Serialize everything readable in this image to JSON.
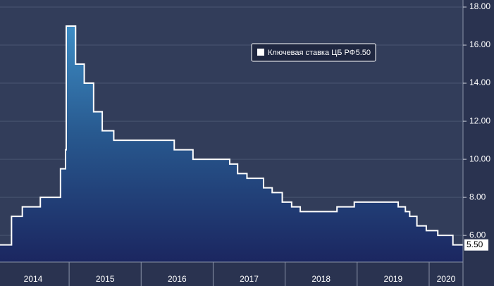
{
  "chart_data": {
    "type": "step-area",
    "series": [
      {
        "name": "Ключевая ставка ЦБ РФ",
        "color": "#ffffff",
        "x": [
          2014.04,
          2014.2,
          2014.35,
          2014.6,
          2014.88,
          2014.95,
          2014.96,
          2015.09,
          2015.21,
          2015.34,
          2015.46,
          2015.62,
          2016.46,
          2016.72,
          2017.23,
          2017.34,
          2017.47,
          2017.7,
          2017.82,
          2017.96,
          2018.09,
          2018.21,
          2018.72,
          2018.96,
          2019.57,
          2019.67,
          2019.73,
          2019.83,
          2019.96,
          2020.12,
          2020.33
        ],
        "values": [
          5.5,
          7.0,
          7.5,
          8.0,
          9.5,
          10.5,
          17.0,
          15.0,
          14.0,
          12.5,
          11.5,
          11.0,
          10.5,
          10.0,
          9.75,
          9.25,
          9.0,
          8.5,
          8.25,
          7.75,
          7.5,
          7.25,
          7.5,
          7.75,
          7.5,
          7.25,
          7.0,
          6.5,
          6.25,
          6.0,
          5.5
        ],
        "last": {
          "value": 5.5,
          "label": "5.50"
        }
      }
    ],
    "xlim": [
      2014.04,
      2020.47
    ],
    "xticks": [
      2014,
      2015,
      2016,
      2017,
      2018,
      2019,
      2020
    ],
    "ylim": [
      4.6,
      18.0
    ],
    "yticks": [
      {
        "value": 6,
        "label": "6.00"
      },
      {
        "value": 8,
        "label": "8.00"
      },
      {
        "value": 10,
        "label": "10.00"
      },
      {
        "value": 12,
        "label": "12.00"
      },
      {
        "value": 14,
        "label": "14.00"
      },
      {
        "value": 16,
        "label": "16.00"
      },
      {
        "value": 18,
        "label": "18.00"
      }
    ],
    "grid": true
  }
}
